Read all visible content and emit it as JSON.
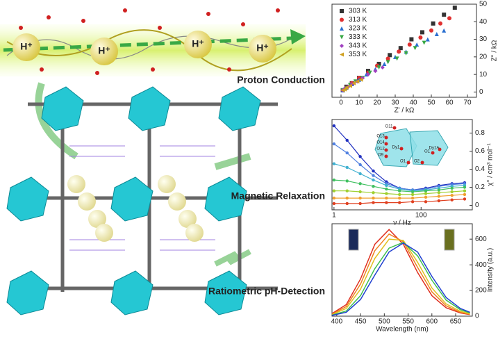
{
  "labels": [
    "Proton Conduction",
    "Magnetic Relaxation",
    "Ratiometric pH-Detection"
  ],
  "proton_labels": [
    "H⁺",
    "H⁺",
    "H⁺",
    "H⁺"
  ],
  "inset_labels": [
    "O11",
    "O13",
    "O14",
    "O12",
    "O9",
    "Dy1",
    "O1",
    "O2",
    "O1",
    "Dy1A"
  ],
  "chart_data": [
    {
      "type": "scatter",
      "xlabel": "Z' / kΩ",
      "ylabel": "Z'' / kΩ",
      "xlim": [
        -5,
        75
      ],
      "ylim": [
        -3,
        50
      ],
      "xticks": [
        0,
        10,
        20,
        30,
        40,
        50,
        60,
        70
      ],
      "yticks": [
        0,
        10,
        20,
        30,
        40,
        50
      ],
      "legend": "top-left",
      "series": [
        {
          "name": "303 K",
          "color": "#333333",
          "marker": "square",
          "x": [
            1,
            3,
            6,
            10,
            15,
            21,
            27,
            33,
            39,
            45,
            51,
            57,
            63
          ],
          "y": [
            1,
            3,
            5,
            8,
            12,
            16,
            21,
            25,
            30,
            34,
            39,
            44,
            48
          ]
        },
        {
          "name": "313 K",
          "color": "#e03030",
          "marker": "circle",
          "x": [
            1,
            3,
            6,
            10,
            15,
            20,
            26,
            32,
            38,
            44,
            50,
            55,
            60
          ],
          "y": [
            1,
            2.5,
            5,
            8,
            11,
            15,
            19,
            23,
            27,
            31,
            35,
            39,
            42
          ]
        },
        {
          "name": "323 K",
          "color": "#2a6fd0",
          "marker": "triangle",
          "x": [
            1,
            3,
            6,
            10,
            14,
            19,
            24,
            30,
            36,
            42,
            48,
            53,
            57
          ],
          "y": [
            1,
            2.5,
            4.5,
            7,
            10,
            13,
            16,
            20,
            23,
            27,
            30,
            33,
            35
          ]
        },
        {
          "name": "333 K",
          "color": "#39a845",
          "marker": "down",
          "x": [
            1,
            3,
            5,
            8,
            12,
            16,
            21,
            26,
            31,
            36,
            41,
            46
          ],
          "y": [
            1,
            2,
            4,
            6,
            8,
            11,
            14,
            17,
            19,
            22,
            25,
            28
          ]
        },
        {
          "name": "343 K",
          "color": "#a040c0",
          "marker": "diamond",
          "x": [
            1,
            2,
            4,
            6,
            9,
            12,
            15,
            19,
            23
          ],
          "y": [
            1,
            2,
            3,
            4.5,
            6,
            8,
            10,
            12,
            14
          ]
        },
        {
          "name": "353 K",
          "color": "#d0a020",
          "marker": "left",
          "x": [
            1,
            2,
            3,
            5,
            7,
            9,
            11
          ],
          "y": [
            1,
            1.5,
            2.5,
            3.5,
            5,
            6,
            7
          ]
        }
      ]
    },
    {
      "type": "line",
      "xlabel": "ν / Hz",
      "ylabel": "χ'' / cm³ mol⁻¹",
      "xlog": true,
      "xlim": [
        0.9,
        1500
      ],
      "ylim": [
        -0.05,
        0.95
      ],
      "xticks": [
        1,
        100
      ],
      "yticks": [
        0.0,
        0.2,
        0.4,
        0.6,
        0.8
      ],
      "x": [
        1,
        2,
        4,
        8,
        16,
        32,
        64,
        128,
        256,
        512,
        1000
      ],
      "series": [
        {
          "color": "#2030c0",
          "values": [
            0.88,
            0.72,
            0.54,
            0.38,
            0.26,
            0.19,
            0.17,
            0.19,
            0.22,
            0.24,
            0.25
          ]
        },
        {
          "color": "#5080e0",
          "values": [
            0.68,
            0.58,
            0.45,
            0.33,
            0.24,
            0.19,
            0.17,
            0.18,
            0.21,
            0.23,
            0.24
          ]
        },
        {
          "color": "#40b0d0",
          "values": [
            0.46,
            0.42,
            0.35,
            0.28,
            0.22,
            0.18,
            0.16,
            0.17,
            0.19,
            0.21,
            0.22
          ]
        },
        {
          "color": "#40c060",
          "values": [
            0.28,
            0.27,
            0.24,
            0.21,
            0.18,
            0.16,
            0.15,
            0.16,
            0.17,
            0.19,
            0.2
          ]
        },
        {
          "color": "#a0d030",
          "values": [
            0.16,
            0.16,
            0.15,
            0.14,
            0.13,
            0.12,
            0.12,
            0.13,
            0.14,
            0.15,
            0.16
          ]
        },
        {
          "color": "#f0a030",
          "values": [
            0.08,
            0.08,
            0.08,
            0.08,
            0.08,
            0.08,
            0.08,
            0.09,
            0.1,
            0.11,
            0.12
          ]
        },
        {
          "color": "#e04020",
          "values": [
            0.02,
            0.02,
            0.02,
            0.03,
            0.03,
            0.03,
            0.04,
            0.04,
            0.05,
            0.06,
            0.07
          ]
        }
      ]
    },
    {
      "type": "line",
      "xlabel": "Wavelength (nm)",
      "ylabel": "Intensity (a.u.)",
      "xlim": [
        390,
        685
      ],
      "ylim": [
        0,
        720
      ],
      "xticks": [
        400,
        450,
        500,
        550,
        600,
        650
      ],
      "yticks": [
        0,
        200,
        400,
        600
      ],
      "x": [
        390,
        420,
        450,
        480,
        510,
        540,
        570,
        600,
        630,
        660,
        680
      ],
      "series": [
        {
          "color": "#e03020",
          "values": [
            20,
            90,
            290,
            560,
            675,
            560,
            340,
            160,
            65,
            25,
            12
          ]
        },
        {
          "color": "#f08020",
          "values": [
            15,
            75,
            250,
            510,
            640,
            580,
            380,
            190,
            80,
            30,
            15
          ]
        },
        {
          "color": "#e0c020",
          "values": [
            12,
            60,
            210,
            450,
            600,
            590,
            420,
            220,
            95,
            38,
            18
          ]
        },
        {
          "color": "#40c050",
          "values": [
            8,
            40,
            160,
            370,
            530,
            575,
            470,
            280,
            125,
            50,
            25
          ]
        },
        {
          "color": "#2040d0",
          "values": [
            6,
            30,
            130,
            320,
            500,
            570,
            500,
            310,
            145,
            60,
            30
          ]
        }
      ]
    }
  ]
}
